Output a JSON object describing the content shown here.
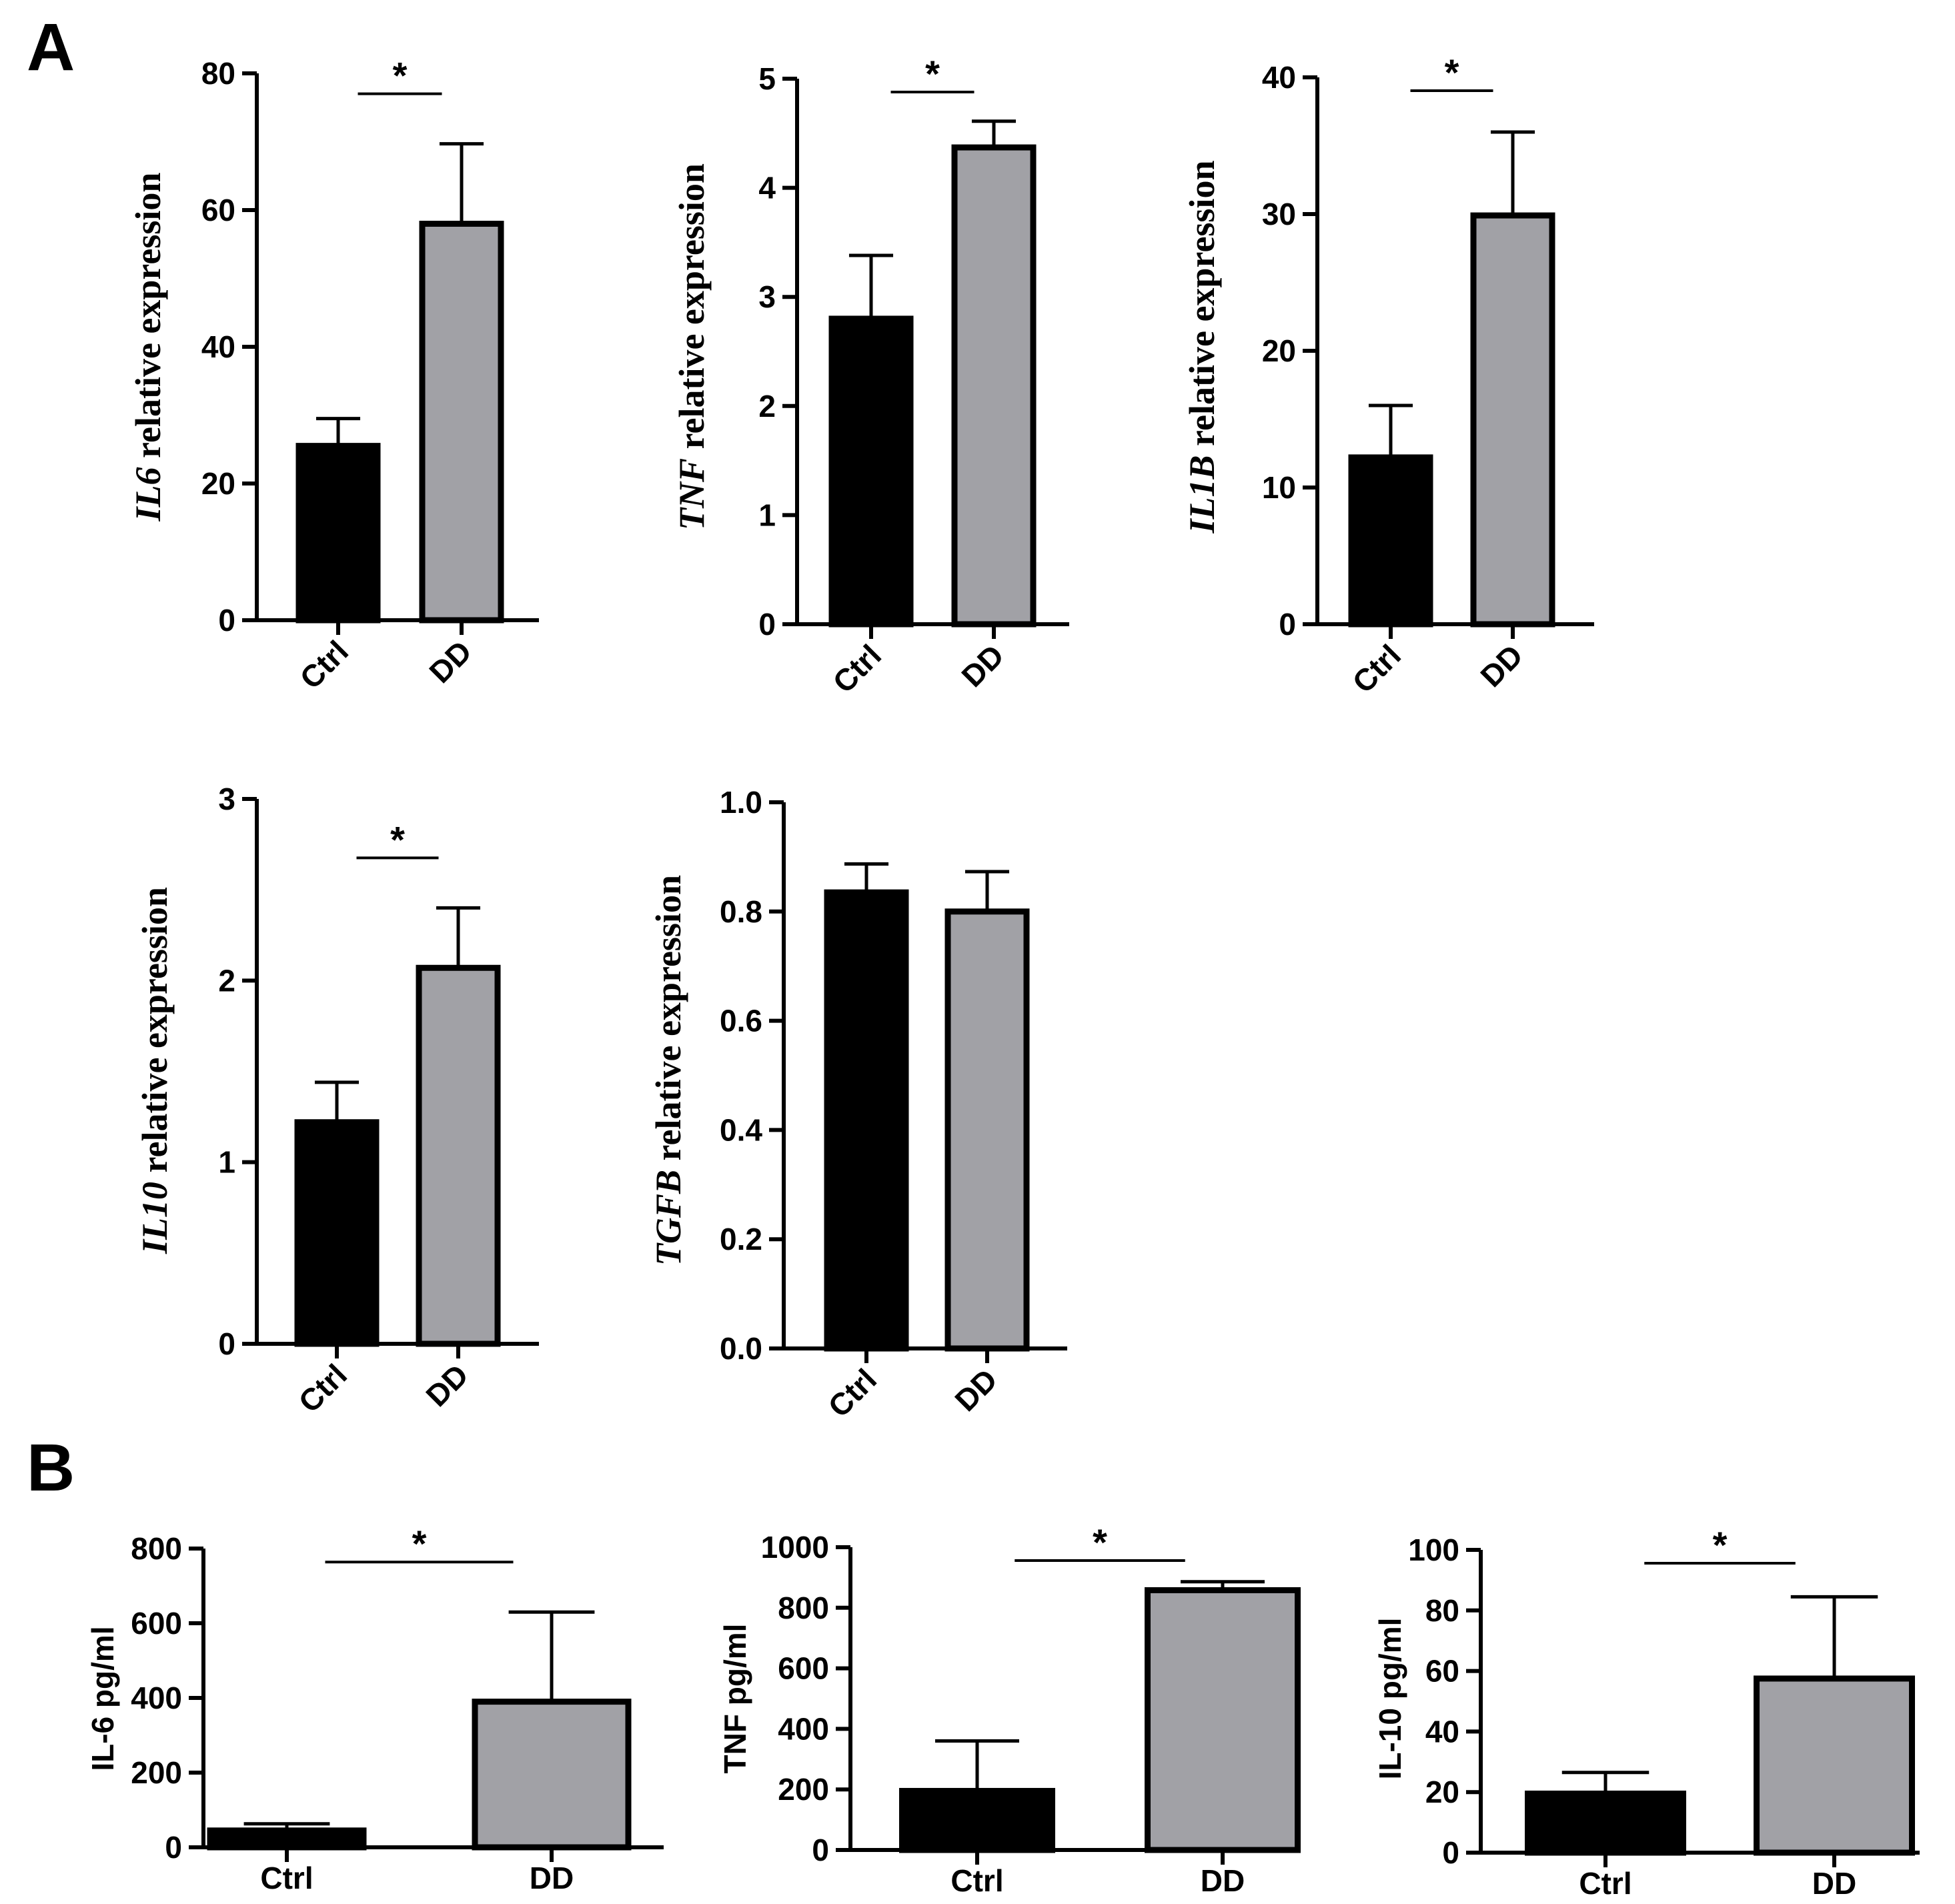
{
  "panels": {
    "a_label": "A",
    "b_label": "B"
  },
  "colors": {
    "ctrl": "#000000",
    "dd": "#a1a1a6",
    "axis": "#000000"
  },
  "chart_data": [
    {
      "id": "il6-mrna",
      "type": "bar",
      "panel": "A",
      "gene": "IL6",
      "ylabel_rest": " relative expression",
      "categories": [
        "Ctrl",
        "DD"
      ],
      "values": [
        25.5,
        58
      ],
      "errors": [
        4,
        11.7
      ],
      "ylim": [
        0,
        80
      ],
      "yticks": [
        "0",
        "20",
        "40",
        "60",
        "80"
      ],
      "significance": "*",
      "rotated_xlabels": true
    },
    {
      "id": "tnf-mrna",
      "type": "bar",
      "panel": "A",
      "gene": "TNF",
      "ylabel_rest": " relative expression",
      "categories": [
        "Ctrl",
        "DD"
      ],
      "values": [
        2.8,
        4.37
      ],
      "errors": [
        0.58,
        0.24
      ],
      "ylim": [
        0,
        5
      ],
      "yticks": [
        "0",
        "1",
        "2",
        "3",
        "4",
        "5"
      ],
      "significance": "*",
      "rotated_xlabels": true
    },
    {
      "id": "il1b-mrna",
      "type": "bar",
      "panel": "A",
      "gene": "IL1B",
      "ylabel_rest": " relative expression",
      "categories": [
        "Ctrl",
        "DD"
      ],
      "values": [
        12.2,
        29.9
      ],
      "errors": [
        3.8,
        6.1
      ],
      "ylim": [
        0,
        40
      ],
      "yticks": [
        "0",
        "10",
        "20",
        "30",
        "40"
      ],
      "significance": "*",
      "rotated_xlabels": true
    },
    {
      "id": "il10-mrna",
      "type": "bar",
      "panel": "A",
      "gene": "IL10",
      "ylabel_rest": " relative expression",
      "categories": [
        "Ctrl",
        "DD"
      ],
      "values": [
        1.22,
        2.07
      ],
      "errors": [
        0.22,
        0.33
      ],
      "ylim": [
        0,
        3
      ],
      "yticks": [
        "0",
        "1",
        "2",
        "3"
      ],
      "significance": "*",
      "rotated_xlabels": true
    },
    {
      "id": "tgfb-mrna",
      "type": "bar",
      "panel": "A",
      "gene": "TGFB",
      "ylabel_rest": " relative expression",
      "categories": [
        "Ctrl",
        "DD"
      ],
      "values": [
        0.835,
        0.8
      ],
      "errors": [
        0.052,
        0.073
      ],
      "ylim": [
        0,
        1
      ],
      "yticks": [
        "0.0",
        "0.2",
        "0.4",
        "0.6",
        "0.8",
        "1.0"
      ],
      "significance": "",
      "rotated_xlabels": true
    },
    {
      "id": "il6-protein",
      "type": "bar",
      "panel": "B",
      "ylabel": "IL-6 pg/ml",
      "categories": [
        "Ctrl",
        "DD"
      ],
      "values": [
        45,
        390
      ],
      "errors": [
        18,
        240
      ],
      "ylim": [
        0,
        800
      ],
      "yticks": [
        "0",
        "200",
        "400",
        "600",
        "800"
      ],
      "significance": "*",
      "rotated_xlabels": false
    },
    {
      "id": "tnf-protein",
      "type": "bar",
      "panel": "B",
      "ylabel": "TNF pg/ml",
      "categories": [
        "Ctrl",
        "DD"
      ],
      "values": [
        195,
        858
      ],
      "errors": [
        165,
        28
      ],
      "ylim": [
        0,
        1000
      ],
      "yticks": [
        "0",
        "200",
        "400",
        "600",
        "800",
        "1000"
      ],
      "significance": "*",
      "rotated_xlabels": false
    },
    {
      "id": "il10-protein",
      "type": "bar",
      "panel": "B",
      "ylabel": "IL-10 pg/ml",
      "categories": [
        "Ctrl",
        "DD"
      ],
      "values": [
        19.5,
        57.5
      ],
      "errors": [
        7,
        27
      ],
      "ylim": [
        0,
        100
      ],
      "yticks": [
        "0",
        "20",
        "40",
        "60",
        "80",
        "100"
      ],
      "significance": "*",
      "rotated_xlabels": false
    }
  ]
}
